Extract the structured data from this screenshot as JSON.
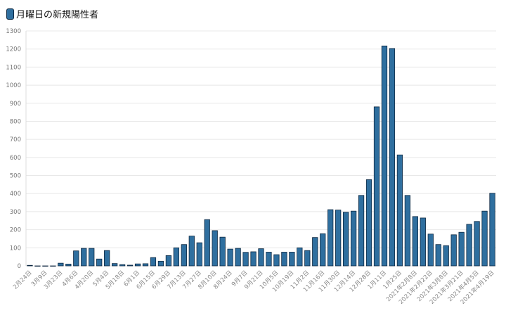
{
  "chart_data": {
    "type": "bar",
    "title": "",
    "xlabel": "",
    "ylabel": "",
    "ylim": [
      0,
      1300
    ],
    "yticks": [
      0,
      100,
      200,
      300,
      400,
      500,
      600,
      700,
      800,
      900,
      1000,
      1100,
      1200,
      1300
    ],
    "grid": true,
    "legend_placement": "top-left",
    "bar_color": "#2f6f9f",
    "bar_edge_color": "#0d2740",
    "series": [
      {
        "name": "月曜日の新規陽性者",
        "values": [
          3,
          0,
          0,
          0,
          15,
          10,
          83,
          97,
          97,
          38,
          85,
          13,
          7,
          4,
          11,
          12,
          46,
          26,
          57,
          100,
          118,
          165,
          128,
          256,
          195,
          159,
          93,
          97,
          75,
          78,
          95,
          76,
          62,
          76,
          76,
          100,
          85,
          157,
          178,
          311,
          309,
          297,
          303,
          390,
          477,
          880,
          1217,
          1203,
          614,
          390,
          273,
          265,
          176,
          118,
          112,
          172,
          186,
          230,
          246,
          303,
          402
        ]
      }
    ],
    "tick_labels": [
      "2月24日",
      "3月9日",
      "3月23日",
      "4月6日",
      "4月20日",
      "5月4日",
      "5月18日",
      "6月1日",
      "6月15日",
      "6月29日",
      "7月13日",
      "7月27日",
      "8月10日",
      "8月24日",
      "9月7日",
      "9月21日",
      "10月5日",
      "10月19日",
      "11月2日",
      "11月16日",
      "11月30日",
      "12月14日",
      "12月28日",
      "1月11日",
      "1月25日",
      "2021年2月8日",
      "2021年2月22日",
      "2021年3月8日",
      "2021年3月21日",
      "2021年4月5日",
      "2021年4月19日"
    ]
  }
}
